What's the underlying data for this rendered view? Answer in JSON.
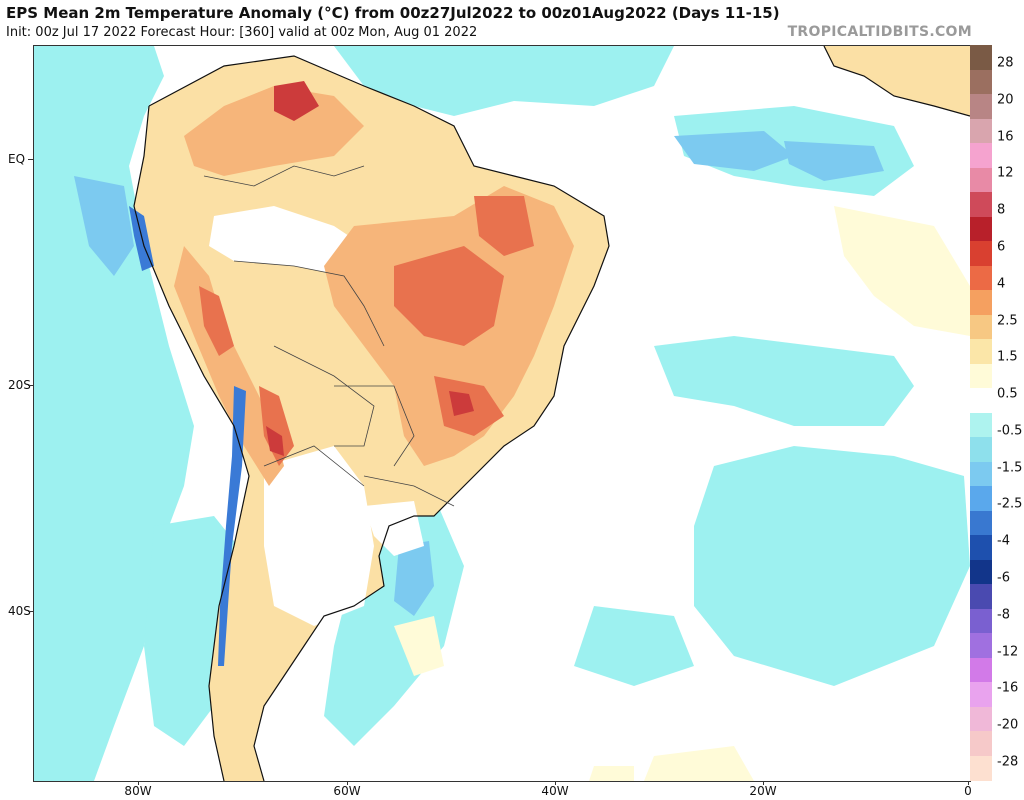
{
  "header": {
    "title": "EPS Mean 2m Temperature Anomaly (°C) from 00z27Jul2022 to 00z01Aug2022 (Days 11-15)",
    "subtitle": "Init: 00z Jul 17 2022   Forecast Hour: [360]   valid at 00z Mon, Aug 01 2022",
    "brand": "TROPICALTIDBITS.COM"
  },
  "axes": {
    "lat_labels": [
      "EQ",
      "20S",
      "40S"
    ],
    "lon_labels": [
      "80W",
      "60W",
      "40W",
      "20W",
      "0"
    ]
  },
  "colorbar": {
    "labels": [
      "28",
      "20",
      "16",
      "12",
      "8",
      "6",
      "4",
      "2.5",
      "1.5",
      "0.5",
      "-0.5",
      "-1.5",
      "-2.5",
      "-4",
      "-6",
      "-8",
      "-12",
      "-16",
      "-20",
      "-28"
    ],
    "colors": [
      "#7a5a45",
      "#9b6f60",
      "#b88585",
      "#d9a5ae",
      "#f5a3cf",
      "#e88aa6",
      "#cf4a5a",
      "#b8202a",
      "#d94030",
      "#ec6a45",
      "#f5a060",
      "#f7c883",
      "#fbe6a8",
      "#fffbd8",
      "#ffffff",
      "#aef3ef",
      "#8ee0ec",
      "#7ccaf0",
      "#5aa8ec",
      "#3978d0",
      "#1e50ae",
      "#12358a",
      "#4a4ab0",
      "#7a60d0",
      "#a070e0",
      "#d27ae8",
      "#e9a3ee",
      "#f0b8d8",
      "#f6c9c9",
      "#fde0d0"
    ]
  },
  "colors": {
    "ocean_cool": "#9df1f0",
    "land_warm_light": "#fbe0a5",
    "land_warm_mid": "#f6b57a",
    "land_warm_strong": "#e8724e",
    "land_hot": "#cc3b3b",
    "cold_coast": "#3a7ad6"
  }
}
